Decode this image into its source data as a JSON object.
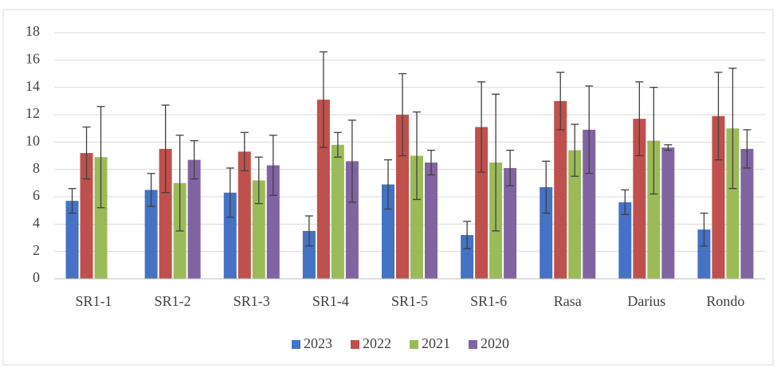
{
  "chart_data": {
    "type": "bar",
    "categories": [
      "SR1-1",
      "SR1-2",
      "SR1-3",
      "SR1-4",
      "SR1-5",
      "SR1-6",
      "Rasa",
      "Darius",
      "Rondo"
    ],
    "series": [
      {
        "name": "2023",
        "color": "#4472c4",
        "values": [
          5.7,
          6.5,
          6.3,
          3.5,
          6.9,
          3.2,
          6.7,
          5.6,
          3.6
        ],
        "errors": [
          0.9,
          1.2,
          1.8,
          1.1,
          1.8,
          1.0,
          1.9,
          0.9,
          1.2
        ]
      },
      {
        "name": "2022",
        "color": "#c0504d",
        "values": [
          9.2,
          9.5,
          9.3,
          13.1,
          12.0,
          11.1,
          13.0,
          11.7,
          11.9
        ],
        "errors": [
          1.9,
          3.2,
          1.4,
          3.5,
          3.0,
          3.3,
          2.1,
          2.7,
          3.2
        ]
      },
      {
        "name": "2021",
        "color": "#9bbb59",
        "values": [
          8.9,
          7.0,
          7.2,
          9.8,
          9.0,
          8.5,
          9.4,
          10.1,
          11.0
        ],
        "errors": [
          3.7,
          3.5,
          1.7,
          0.9,
          3.2,
          5.0,
          1.9,
          3.9,
          4.4
        ]
      },
      {
        "name": "2020",
        "color": "#8064a2",
        "values": [
          null,
          8.7,
          8.3,
          8.6,
          8.5,
          8.1,
          10.9,
          9.6,
          9.5
        ],
        "errors": [
          null,
          1.4,
          2.2,
          3.0,
          0.9,
          1.3,
          3.2,
          0.2,
          1.4
        ]
      }
    ],
    "ylim": [
      0,
      18
    ],
    "yticks": [
      0,
      2,
      4,
      6,
      8,
      10,
      12,
      14,
      16,
      18
    ],
    "grid": true,
    "legend": "bottom"
  }
}
